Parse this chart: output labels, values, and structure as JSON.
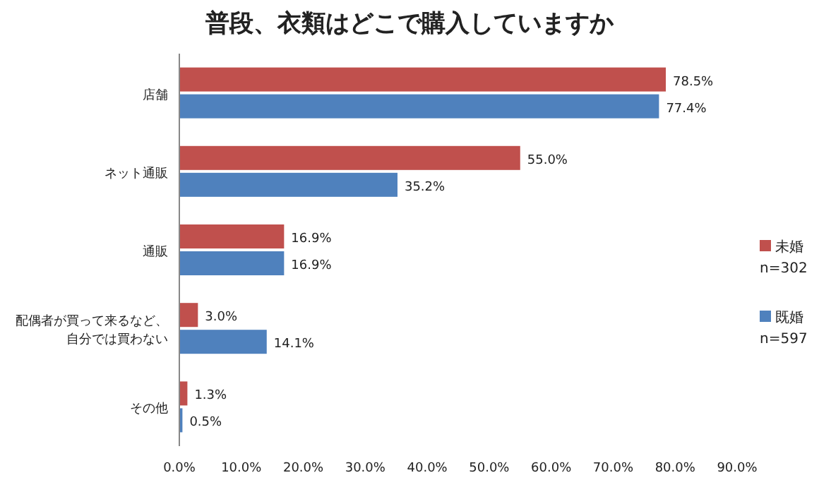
{
  "chart_data": {
    "type": "bar",
    "orientation": "horizontal",
    "title": "普段、衣類はどこで購入していますか",
    "categories": [
      "店舗",
      "ネット通販",
      "通販",
      "配偶者が買って来るなど、自分では買わない",
      "その他"
    ],
    "series": [
      {
        "name": "未婚",
        "color": "#c0504d",
        "values": [
          78.5,
          55.0,
          16.9,
          3.0,
          1.3
        ],
        "value_labels": [
          "78.5%",
          "55.0%",
          "16.9%",
          "3.0%",
          "1.3%"
        ]
      },
      {
        "name": "既婚",
        "color": "#4f81bd",
        "values": [
          77.4,
          35.2,
          16.9,
          14.1,
          0.5
        ],
        "value_labels": [
          "77.4%",
          "35.2%",
          "16.9%",
          "14.1%",
          "0.5%"
        ]
      }
    ],
    "annotations": [
      "n=302",
      "n=597"
    ],
    "xlim": [
      0,
      90
    ],
    "xticks": [
      {
        "value": 0,
        "label": "0.0%"
      },
      {
        "value": 10,
        "label": "10.0%"
      },
      {
        "value": 20,
        "label": "20.0%"
      },
      {
        "value": 30,
        "label": "30.0%"
      },
      {
        "value": 40,
        "label": "40.0%"
      },
      {
        "value": 50,
        "label": "50.0%"
      },
      {
        "value": 60,
        "label": "60.0%"
      },
      {
        "value": 70,
        "label": "70.0%"
      },
      {
        "value": 80,
        "label": "80.0%"
      },
      {
        "value": 90,
        "label": "90.0%"
      }
    ],
    "legend": "right"
  }
}
